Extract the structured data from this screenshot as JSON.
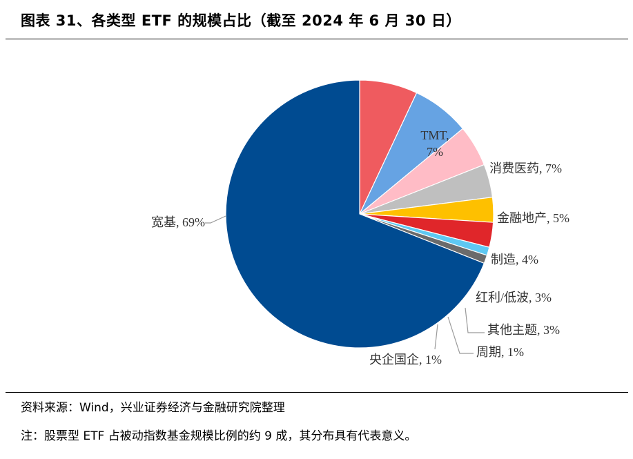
{
  "figure": {
    "title": "图表 31、各类型 ETF 的规模占比（截至 2024 年 6 月 30 日）"
  },
  "chart_data": {
    "type": "pie",
    "title": "各类型 ETF 的规模占比（截至 2024 年 6 月 30 日）",
    "start": "12 o'clock, clockwise",
    "slices": [
      {
        "name": "TMT",
        "value": 7,
        "label": "7%",
        "color": "#ef5b5f"
      },
      {
        "name": "消费医药",
        "value": 7,
        "label": "7%",
        "color": "#66a3e3"
      },
      {
        "name": "金融地产",
        "value": 5,
        "label": "5%",
        "color": "#ffbcc6"
      },
      {
        "name": "制造",
        "value": 4,
        "label": "4%",
        "color": "#bfbfbf"
      },
      {
        "name": "红利/低波",
        "value": 3,
        "label": "3%",
        "color": "#fec000"
      },
      {
        "name": "其他主题",
        "value": 3,
        "label": "3%",
        "color": "#e0262a"
      },
      {
        "name": "周期",
        "value": 1,
        "label": "1%",
        "color": "#5ec8f2"
      },
      {
        "name": "央企国企",
        "value": 1,
        "label": "1%",
        "color": "#6b6b6b"
      },
      {
        "name": "宽基",
        "value": 69,
        "label": "69%",
        "color": "#004b91"
      }
    ]
  },
  "footer": {
    "source": "资料来源：Wind，兴业证券经济与金融研究院整理",
    "note": "注：股票型 ETF 占被动指数基金规模比例的约 9 成，其分布具有代表意义。"
  }
}
